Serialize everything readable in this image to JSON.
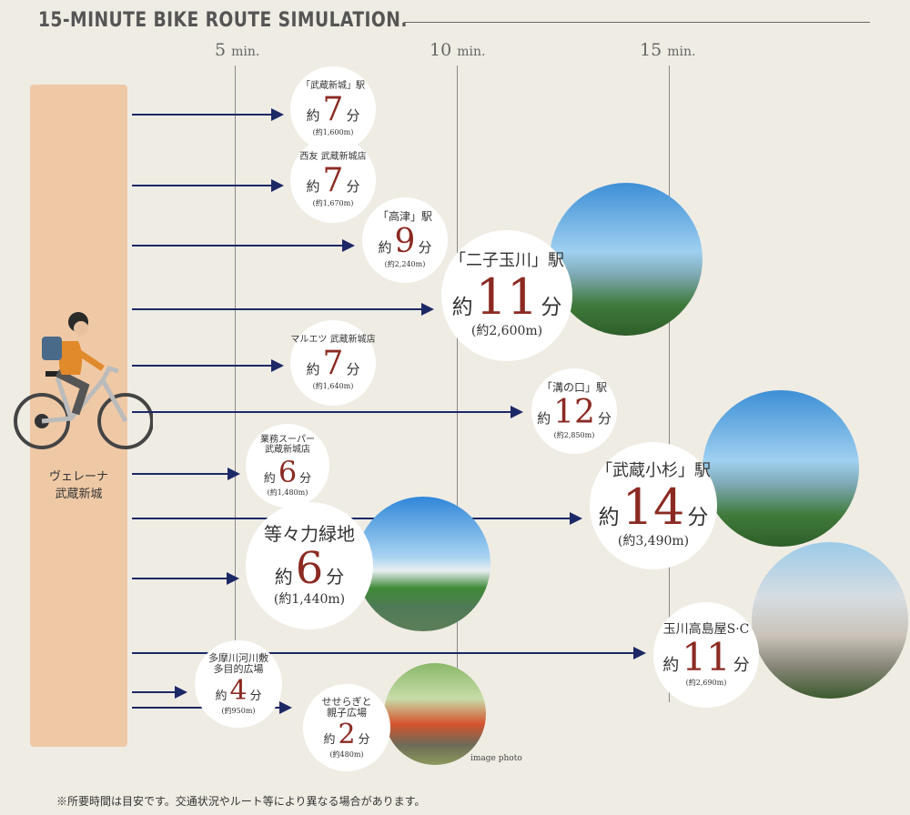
{
  "title": "15-MINUTE BIKE ROUTE SIMULATION.",
  "ticks": [
    {
      "num": "5",
      "unit": "min."
    },
    {
      "num": "10",
      "unit": "min."
    },
    {
      "num": "15",
      "unit": "min."
    }
  ],
  "origin": {
    "line1": "ヴェレーナ",
    "line2": "武蔵新城"
  },
  "prefix": "約",
  "suffix": "分",
  "destinations": [
    {
      "name": "「武蔵新城」駅",
      "minutes": "7",
      "distance": "(約1,600m)"
    },
    {
      "name": "西友 武蔵新城店",
      "minutes": "7",
      "distance": "(約1,670m)"
    },
    {
      "name": "「高津」駅",
      "minutes": "9",
      "distance": "(約2,240m)"
    },
    {
      "name": "「二子玉川」駅",
      "minutes": "11",
      "distance": "(約2,600m)"
    },
    {
      "name": "マルエツ 武蔵新城店",
      "minutes": "7",
      "distance": "(約1,640m)"
    },
    {
      "name": "「溝の口」駅",
      "minutes": "12",
      "distance": "(約2,850m)"
    },
    {
      "name": "業務スーパー\n武蔵新城店",
      "minutes": "6",
      "distance": "(約1,480m)"
    },
    {
      "name": "「武蔵小杉」駅",
      "minutes": "14",
      "distance": "(約3,490m)"
    },
    {
      "name": "等々力緑地",
      "minutes": "6",
      "distance": "(約1,440m)"
    },
    {
      "name": "玉川高島屋S·C",
      "minutes": "11",
      "distance": "(約2,690m)"
    },
    {
      "name": "多摩川河川敷\n多目的広場",
      "minutes": "4",
      "distance": "(約950m)"
    },
    {
      "name": "せせらぎと\n親子広場",
      "minutes": "2",
      "distance": "(約480m)"
    }
  ],
  "image_caption": "image photo",
  "footnote": "※所要時間は目安です。交通状況やルート等により異なる場合があります。",
  "colors": {
    "accent": "#8b2a22",
    "arrow": "#1d2866",
    "origin_bar": "#efc9a6",
    "background": "#efece4"
  }
}
